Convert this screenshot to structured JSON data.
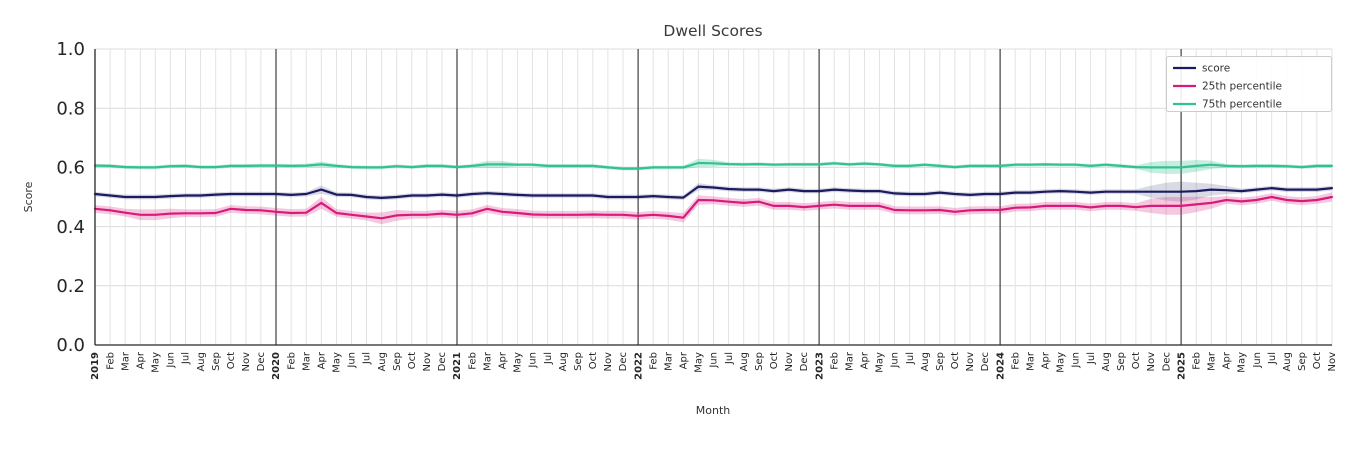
{
  "chart_data": {
    "type": "line",
    "title": "Dwell Scores",
    "xlabel": "Month",
    "ylabel": "Score",
    "ylim": [
      0.0,
      1.0
    ],
    "yticks": [
      0.0,
      0.2,
      0.4,
      0.6,
      0.8,
      1.0
    ],
    "grid": true,
    "legend_position": "upper right",
    "x_labels": [
      "2019",
      "Feb",
      "Mar",
      "Apr",
      "May",
      "Jun",
      "Jul",
      "Aug",
      "Sep",
      "Oct",
      "Nov",
      "Dec",
      "2020",
      "Feb",
      "Mar",
      "Apr",
      "May",
      "Jun",
      "Jul",
      "Aug",
      "Sep",
      "Oct",
      "Nov",
      "Dec",
      "2021",
      "Feb",
      "Mar",
      "Apr",
      "May",
      "Jun",
      "Jul",
      "Aug",
      "Sep",
      "Oct",
      "Nov",
      "Dec",
      "2022",
      "Feb",
      "Mar",
      "Apr",
      "May",
      "Jun",
      "Jul",
      "Aug",
      "Sep",
      "Oct",
      "Nov",
      "Dec",
      "2023",
      "Feb",
      "Mar",
      "Apr",
      "May",
      "Jun",
      "Jul",
      "Aug",
      "Sep",
      "Oct",
      "Nov",
      "Dec",
      "2024",
      "Feb",
      "Mar",
      "Apr",
      "May",
      "Jun",
      "Jul",
      "Aug",
      "Sep",
      "Oct",
      "Nov",
      "Dec",
      "2025",
      "Feb",
      "Mar",
      "Apr",
      "May",
      "Jun",
      "Jul",
      "Aug",
      "Sep",
      "Oct",
      "Nov"
    ],
    "year_start_indices": [
      0,
      12,
      24,
      36,
      48,
      60,
      72
    ],
    "series": [
      {
        "name": "score",
        "color": "#1b1b5f",
        "values": [
          0.51,
          0.505,
          0.5,
          0.5,
          0.5,
          0.503,
          0.505,
          0.505,
          0.508,
          0.51,
          0.51,
          0.51,
          0.51,
          0.507,
          0.51,
          0.525,
          0.508,
          0.507,
          0.5,
          0.497,
          0.5,
          0.505,
          0.505,
          0.508,
          0.505,
          0.51,
          0.513,
          0.51,
          0.507,
          0.505,
          0.505,
          0.505,
          0.505,
          0.505,
          0.5,
          0.5,
          0.5,
          0.503,
          0.5,
          0.498,
          0.535,
          0.532,
          0.527,
          0.525,
          0.525,
          0.52,
          0.525,
          0.52,
          0.52,
          0.525,
          0.522,
          0.52,
          0.52,
          0.512,
          0.51,
          0.51,
          0.515,
          0.51,
          0.507,
          0.51,
          0.51,
          0.515,
          0.515,
          0.518,
          0.52,
          0.518,
          0.515,
          0.518,
          0.518,
          0.518,
          0.518,
          0.518,
          0.518,
          0.52,
          0.525,
          0.523,
          0.52,
          0.525,
          0.53,
          0.525,
          0.525,
          0.525,
          0.53
        ],
        "band_delta": {
          "default": 0.008,
          "overrides": {
            "15": 0.014,
            "40": 0.012,
            "70": 0.02,
            "71": 0.03,
            "72": 0.034,
            "73": 0.028,
            "74": 0.02,
            "75": 0.014
          }
        }
      },
      {
        "name": "25th percentile",
        "color": "#d81b7b",
        "values": [
          0.46,
          0.455,
          0.447,
          0.44,
          0.44,
          0.444,
          0.445,
          0.445,
          0.446,
          0.46,
          0.456,
          0.455,
          0.45,
          0.446,
          0.447,
          0.48,
          0.446,
          0.44,
          0.434,
          0.428,
          0.438,
          0.44,
          0.44,
          0.444,
          0.44,
          0.445,
          0.46,
          0.45,
          0.446,
          0.441,
          0.44,
          0.44,
          0.44,
          0.441,
          0.44,
          0.44,
          0.436,
          0.44,
          0.436,
          0.43,
          0.49,
          0.489,
          0.484,
          0.48,
          0.484,
          0.47,
          0.47,
          0.466,
          0.47,
          0.474,
          0.47,
          0.47,
          0.47,
          0.456,
          0.455,
          0.455,
          0.456,
          0.45,
          0.455,
          0.456,
          0.456,
          0.464,
          0.465,
          0.47,
          0.47,
          0.47,
          0.465,
          0.47,
          0.47,
          0.466,
          0.47,
          0.47,
          0.47,
          0.475,
          0.48,
          0.49,
          0.485,
          0.49,
          0.5,
          0.49,
          0.486,
          0.49,
          0.5
        ],
        "band_delta": {
          "default": 0.013,
          "overrides": {
            "3": 0.018,
            "4": 0.018,
            "5": 0.016,
            "15": 0.02,
            "19": 0.02,
            "20": 0.018,
            "39": 0.016,
            "40": 0.016,
            "70": 0.024,
            "71": 0.03,
            "72": 0.03,
            "73": 0.026,
            "74": 0.02,
            "82": 0.016
          }
        }
      },
      {
        "name": "75th percentile",
        "color": "#33c18f",
        "values": [
          0.606,
          0.605,
          0.601,
          0.6,
          0.6,
          0.604,
          0.605,
          0.601,
          0.601,
          0.605,
          0.605,
          0.606,
          0.606,
          0.605,
          0.606,
          0.61,
          0.605,
          0.601,
          0.6,
          0.6,
          0.604,
          0.601,
          0.605,
          0.605,
          0.601,
          0.605,
          0.61,
          0.61,
          0.609,
          0.609,
          0.605,
          0.605,
          0.605,
          0.605,
          0.6,
          0.596,
          0.596,
          0.6,
          0.6,
          0.6,
          0.615,
          0.614,
          0.611,
          0.61,
          0.611,
          0.609,
          0.61,
          0.61,
          0.61,
          0.614,
          0.61,
          0.613,
          0.61,
          0.605,
          0.605,
          0.609,
          0.605,
          0.601,
          0.605,
          0.605,
          0.605,
          0.609,
          0.609,
          0.61,
          0.609,
          0.609,
          0.605,
          0.609,
          0.605,
          0.601,
          0.6,
          0.6,
          0.6,
          0.605,
          0.609,
          0.605,
          0.604,
          0.605,
          0.605,
          0.604,
          0.601,
          0.605,
          0.605
        ],
        "band_delta": {
          "default": 0.006,
          "overrides": {
            "15": 0.01,
            "26": 0.012,
            "27": 0.012,
            "40": 0.014,
            "41": 0.012,
            "70": 0.018,
            "71": 0.022,
            "72": 0.022,
            "73": 0.02,
            "74": 0.014
          }
        }
      }
    ]
  }
}
